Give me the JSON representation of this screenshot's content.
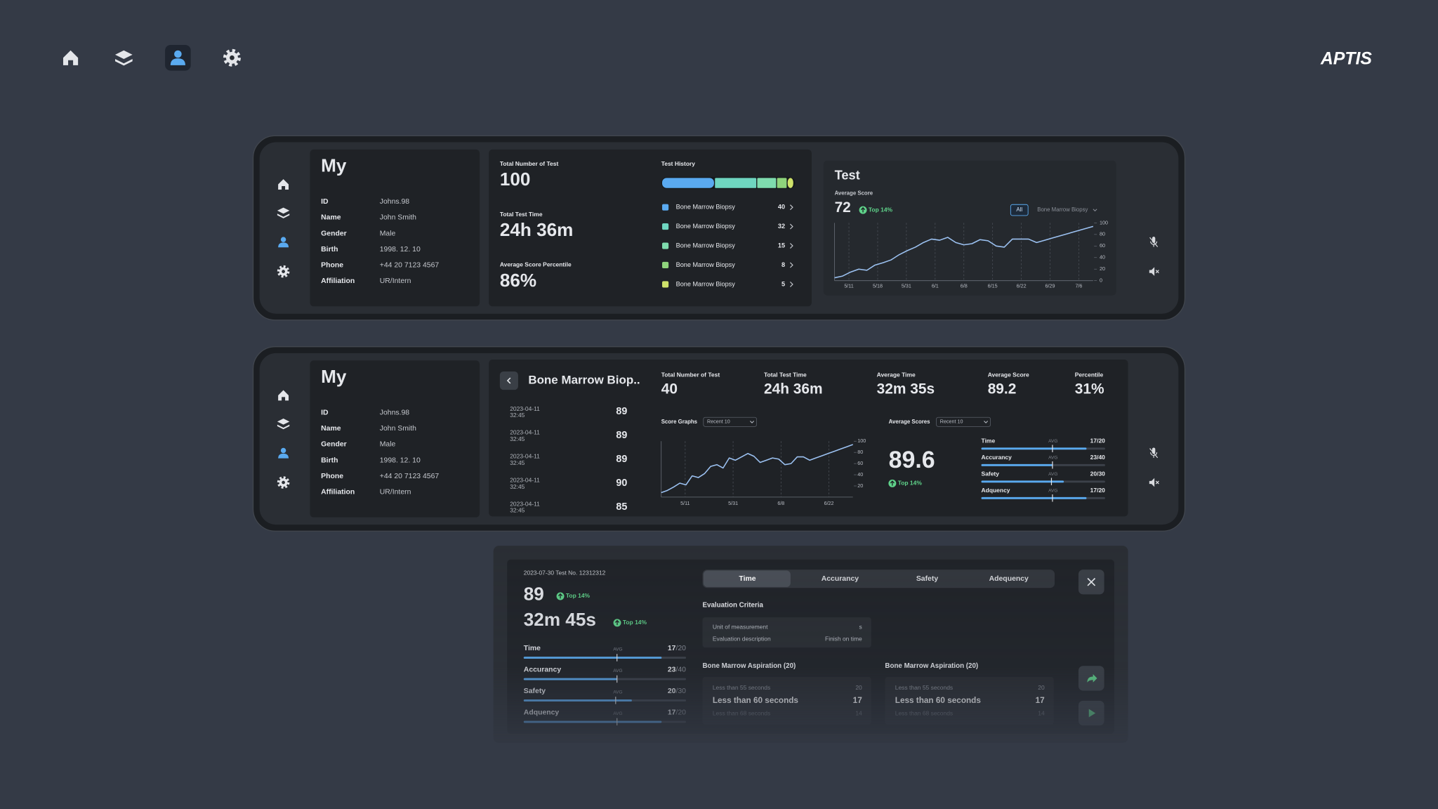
{
  "nav": {
    "brand": "APTIS"
  },
  "profile": {
    "title": "My",
    "rows": [
      {
        "label": "ID",
        "value": "Johns.98"
      },
      {
        "label": "Name",
        "value": "John Smith"
      },
      {
        "label": "Gender",
        "value": "Male"
      },
      {
        "label": "Birth",
        "value": "1998. 12. 10"
      },
      {
        "label": "Phone",
        "value": "+44 20 7123 4567"
      },
      {
        "label": "Affiliation",
        "value": "UR/Intern"
      }
    ]
  },
  "overview": {
    "stats": [
      {
        "label": "Total Number of Test",
        "value": "100"
      },
      {
        "label": "Total Test Time",
        "value": "24h 36m"
      },
      {
        "label": "Average Score Percentile",
        "value": "86%"
      }
    ],
    "history": {
      "title": "Test History",
      "items": [
        {
          "name": "Bone Marrow Biopsy",
          "count": 40,
          "color": "#5aaaf0"
        },
        {
          "name": "Bone Marrow Biopsy",
          "count": 32,
          "color": "#6fd6c0"
        },
        {
          "name": "Bone Marrow Biopsy",
          "count": 15,
          "color": "#7fdcae"
        },
        {
          "name": "Bone Marrow Biopsy",
          "count": 8,
          "color": "#8fd47c"
        },
        {
          "name": "Bone Marrow Biopsy",
          "count": 5,
          "color": "#cfe26a"
        }
      ]
    },
    "test": {
      "title": "Test",
      "score_label": "Average Score",
      "score": 72,
      "badge": "Top 14%",
      "filter_all": "All",
      "filter": "Bone Marrow Biopsy",
      "chart": {
        "type": "line",
        "color": "#9cc2f2",
        "ylim": [
          0,
          100
        ],
        "yticks": [
          0,
          20,
          40,
          60,
          80,
          100
        ],
        "xticks": [
          "5/11",
          "5/18",
          "5/31",
          "6/1",
          "6/8",
          "6/15",
          "6/22",
          "6/29",
          "7/6"
        ],
        "values": [
          5,
          8,
          15,
          20,
          18,
          27,
          31,
          36,
          45,
          52,
          58,
          66,
          72,
          70,
          75,
          66,
          62,
          64,
          71,
          69,
          60,
          58,
          72,
          72,
          72,
          66,
          70,
          74,
          78,
          82,
          86,
          90,
          94
        ]
      }
    }
  },
  "detail": {
    "title": "Bone Marrow Biop..",
    "records": [
      {
        "date": "2023-04-11",
        "time": "32:45",
        "score": 89
      },
      {
        "date": "2023-04-11",
        "time": "32:45",
        "score": 89
      },
      {
        "date": "2023-04-11",
        "time": "32:45",
        "score": 89
      },
      {
        "date": "2023-04-11",
        "time": "32:45",
        "score": 90
      },
      {
        "date": "2023-04-11",
        "time": "32:45",
        "score": 85
      }
    ],
    "stats": [
      {
        "label": "Total Number of Test",
        "value": "40"
      },
      {
        "label": "Total Test Time",
        "value": "24h 36m"
      },
      {
        "label": "Average Time",
        "value": "32m 35s"
      },
      {
        "label": "Average Score",
        "value": "89.2"
      },
      {
        "label": "Percentile",
        "value": "31%"
      }
    ],
    "graph_title": "Score Graphs",
    "graph_filter": "Recent 10",
    "chart": {
      "type": "line",
      "color": "#9cc2f2",
      "ylim": [
        0,
        100
      ],
      "yticks": [
        20,
        40,
        60,
        80,
        100
      ],
      "xticks": [
        "5/11",
        "5/31",
        "6/8",
        "6/22"
      ],
      "values": [
        8,
        12,
        18,
        25,
        22,
        38,
        35,
        42,
        55,
        58,
        52,
        70,
        66,
        72,
        78,
        73,
        62,
        66,
        70,
        68,
        58,
        60,
        72,
        72,
        66,
        70,
        74,
        78,
        82,
        86,
        90,
        94
      ]
    },
    "avg_title": "Average Scores",
    "avg_filter": "Recent 10",
    "avg_score": "89.6",
    "badge": "Top 14%",
    "criteria": [
      {
        "name": "Time",
        "avg_label": "AVG",
        "label": "17/20",
        "score": 17,
        "max": 20,
        "avg": 11.5
      },
      {
        "name": "Accurancy",
        "avg_label": "AVG",
        "label": "23/40",
        "score": 23,
        "max": 40,
        "avg": 23
      },
      {
        "name": "Safety",
        "avg_label": "AVG",
        "label": "20/30",
        "score": 20,
        "max": 30,
        "avg": 17
      },
      {
        "name": "Adquency",
        "avg_label": "AVG",
        "label": "17/20",
        "score": 17,
        "max": 20,
        "avg": 11.5
      }
    ]
  },
  "result": {
    "header": "2023-07-30 Test No. 12312312",
    "score": 89,
    "score_badge": "Top 14%",
    "time": "32m 45s",
    "time_badge": "Top 14%",
    "criteria": [
      {
        "name": "Time",
        "avg_label": "AVG",
        "score": 17,
        "max_label": "/20",
        "max": 20,
        "avg": 11.5
      },
      {
        "name": "Accurancy",
        "avg_label": "AVG",
        "score": 23,
        "max_label": "/40",
        "max": 40,
        "avg": 23
      },
      {
        "name": "Safety",
        "avg_label": "AVG",
        "score": 20,
        "max_label": "/30",
        "max": 30,
        "avg": 17
      },
      {
        "name": "Adquency",
        "avg_label": "AVG",
        "score": 17,
        "max_label": "/20",
        "max": 20,
        "avg": 11.5
      }
    ],
    "tabs": [
      "Time",
      "Accurancy",
      "Safety",
      "Adequency"
    ],
    "criteria_title": "Evaluation Criteria",
    "unit": {
      "label": "Unit of measurement",
      "value": "s"
    },
    "description": {
      "label": "Evaluation description",
      "value": "Finish on time"
    },
    "columns": [
      {
        "title": "Bone Marrow Aspiration (20)",
        "rows": [
          {
            "label": "Less than 55 seconds",
            "value": 20
          },
          {
            "label": "Less than 60 seconds",
            "value": 17
          },
          {
            "label": "Less than 68 seconds",
            "value": 14
          }
        ]
      },
      {
        "title": "Bone Marrow Aspiration (20)",
        "rows": [
          {
            "label": "Less than 55 seconds",
            "value": 20
          },
          {
            "label": "Less than 60 seconds",
            "value": 17
          },
          {
            "label": "Less than 68 seconds",
            "value": 14
          }
        ]
      }
    ]
  }
}
